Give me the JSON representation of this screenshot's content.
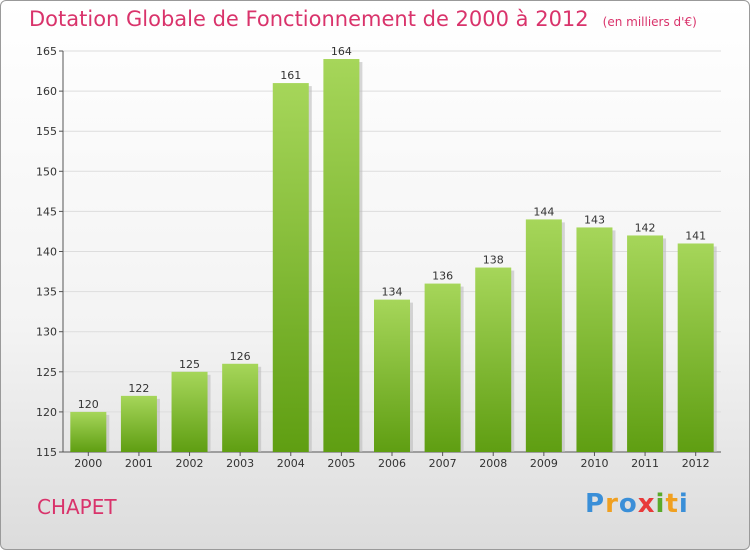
{
  "header": {
    "title": "Dotation Globale de Fonctionnement de 2000 à 2012",
    "subtitle": "(en milliers d'€)"
  },
  "commune": "CHAPET",
  "logo": {
    "text": "Proxiti",
    "letters": [
      {
        "ch": "P",
        "color": "#3a8fd8"
      },
      {
        "ch": "r",
        "color": "#f0a020"
      },
      {
        "ch": "o",
        "color": "#3a8fd8"
      },
      {
        "ch": "x",
        "color": "#e83a3a"
      },
      {
        "ch": "i",
        "color": "#5aaa2a"
      },
      {
        "ch": "t",
        "color": "#f0a020"
      },
      {
        "ch": "i",
        "color": "#3a8fd8"
      }
    ]
  },
  "chart_data": {
    "type": "bar",
    "title": "Dotation Globale de Fonctionnement de 2000 à 2012",
    "subtitle": "(en milliers d'€)",
    "categories": [
      "2000",
      "2001",
      "2002",
      "2003",
      "2004",
      "2005",
      "2006",
      "2007",
      "2008",
      "2009",
      "2010",
      "2011",
      "2012"
    ],
    "values": [
      120,
      122,
      125,
      126,
      161,
      164,
      134,
      136,
      138,
      144,
      143,
      142,
      141
    ],
    "ylim": [
      115,
      165
    ],
    "yticks": [
      115,
      120,
      125,
      130,
      135,
      140,
      145,
      150,
      155,
      160,
      165
    ],
    "grid": true,
    "colors": {
      "bar_top": "#a6d65a",
      "bar_bottom": "#5f9e12",
      "title": "#d9336b"
    }
  }
}
